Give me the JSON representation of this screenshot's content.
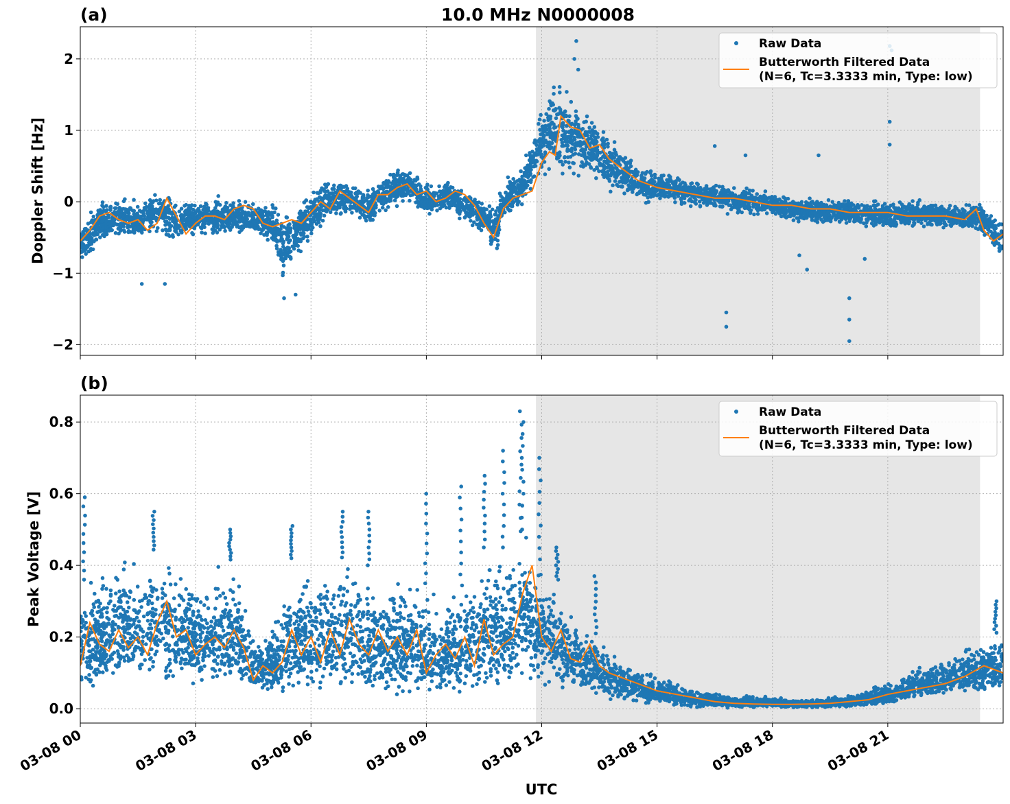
{
  "colors": {
    "raw": "#1f77b4",
    "filtered": "#ff7f0e",
    "shade": "#e6e6e6",
    "grid": "#b0b0b0"
  },
  "figure": {
    "suptitle": "10.0 MHz N0000008",
    "xlabel": "UTC"
  },
  "chart_data": [
    {
      "type": "scatter",
      "panel_label": "(a)",
      "ylabel": "Doppler Shift [Hz]",
      "xlim": [
        0,
        24
      ],
      "ylim": [
        -2.15,
        2.45
      ],
      "yticks": [
        -2,
        -1,
        0,
        1,
        2
      ],
      "ytick_labels": [
        "−2",
        "−1",
        "0",
        "1",
        "2"
      ],
      "xticks": [
        0,
        3,
        6,
        9,
        12,
        15,
        18,
        21
      ],
      "xtick_labels": [
        "03-08 00",
        "03-08 03",
        "03-08 06",
        "03-08 09",
        "03-08 12",
        "03-08 15",
        "03-08 18",
        "03-08 21"
      ],
      "grid": true,
      "legend_position": "top-right",
      "shaded_interval": [
        11.85,
        23.4
      ],
      "series": [
        {
          "name": "Raw Data",
          "style": "dots",
          "band": {
            "x": [
              0,
              0.5,
              1,
              1.5,
              2,
              2.5,
              3,
              3.5,
              4,
              4.5,
              5,
              5.3,
              5.7,
              6,
              6.5,
              7,
              7.5,
              8,
              8.5,
              9,
              9.5,
              10,
              10.5,
              10.8,
              11,
              11.5,
              11.85,
              12.3,
              12.8,
              13.3,
              14,
              14.5,
              15,
              16,
              17,
              18,
              19,
              20,
              21,
              22,
              23,
              23.4,
              24
            ],
            "lo": [
              -0.95,
              -0.6,
              -0.6,
              -0.6,
              -0.5,
              -0.6,
              -0.5,
              -0.55,
              -0.5,
              -0.5,
              -0.7,
              -1.2,
              -0.8,
              -0.6,
              -0.3,
              -0.2,
              -0.4,
              -0.15,
              0.0,
              -0.25,
              -0.15,
              -0.3,
              -0.5,
              -0.85,
              -0.3,
              -0.1,
              0.25,
              0.3,
              0.3,
              0.25,
              0.05,
              -0.05,
              -0.05,
              -0.1,
              -0.2,
              -0.25,
              -0.35,
              -0.35,
              -0.4,
              -0.4,
              -0.45,
              -0.45,
              -0.9
            ],
            "hi": [
              -0.3,
              0.05,
              0.1,
              0.05,
              0.2,
              0.05,
              0.05,
              0.1,
              0.05,
              0.05,
              0.05,
              -0.1,
              0.05,
              0.2,
              0.35,
              0.3,
              0.25,
              0.45,
              0.5,
              0.3,
              0.35,
              0.2,
              0.05,
              0.0,
              0.35,
              0.5,
              1.1,
              1.8,
              1.55,
              1.25,
              0.85,
              0.55,
              0.45,
              0.35,
              0.25,
              0.15,
              0.1,
              0.05,
              0.05,
              0.05,
              0.0,
              0.0,
              -0.2
            ]
          },
          "outliers": [
            [
              1.6,
              -1.15
            ],
            [
              2.2,
              -1.15
            ],
            [
              5.3,
              -1.35
            ],
            [
              5.6,
              -1.3
            ],
            [
              12.9,
              2.25
            ],
            [
              12.85,
              2.0
            ],
            [
              12.95,
              1.85
            ],
            [
              16.8,
              -1.55
            ],
            [
              16.8,
              -1.75
            ],
            [
              17.3,
              0.65
            ],
            [
              18.7,
              -0.75
            ],
            [
              18.9,
              -0.95
            ],
            [
              19.2,
              0.65
            ],
            [
              20.0,
              -1.35
            ],
            [
              20.0,
              -1.65
            ],
            [
              20.0,
              -1.95
            ],
            [
              21.05,
              1.12
            ],
            [
              21.05,
              0.8
            ],
            [
              21.05,
              2.18
            ],
            [
              21.1,
              2.12
            ],
            [
              16.5,
              0.78
            ],
            [
              20.4,
              -0.8
            ]
          ]
        },
        {
          "name": "Butterworth Filtered Data\n(N=6, Tc=3.3333 min, Type: low)",
          "style": "line",
          "x": [
            0,
            0.25,
            0.5,
            0.75,
            1,
            1.25,
            1.5,
            1.75,
            2,
            2.25,
            2.5,
            2.75,
            3,
            3.25,
            3.5,
            3.75,
            4,
            4.25,
            4.5,
            4.75,
            5,
            5.25,
            5.5,
            5.75,
            6,
            6.25,
            6.5,
            6.75,
            7,
            7.25,
            7.5,
            7.75,
            8,
            8.25,
            8.5,
            8.75,
            9,
            9.25,
            9.5,
            9.75,
            10,
            10.25,
            10.5,
            10.75,
            11,
            11.25,
            11.5,
            11.75,
            12,
            12.2,
            12.35,
            12.5,
            12.75,
            13,
            13.25,
            13.5,
            13.75,
            14,
            14.5,
            15,
            15.5,
            16,
            16.5,
            17,
            17.5,
            18,
            18.5,
            19,
            19.5,
            20,
            20.5,
            21,
            21.5,
            22,
            22.5,
            23,
            23.3,
            23.5,
            23.75,
            24
          ],
          "y": [
            -0.55,
            -0.4,
            -0.2,
            -0.15,
            -0.25,
            -0.3,
            -0.25,
            -0.4,
            -0.3,
            0.05,
            -0.2,
            -0.45,
            -0.3,
            -0.2,
            -0.2,
            -0.25,
            -0.1,
            -0.05,
            -0.1,
            -0.3,
            -0.35,
            -0.3,
            -0.25,
            -0.3,
            -0.15,
            0.0,
            -0.1,
            0.15,
            0.05,
            -0.05,
            -0.15,
            0.1,
            0.1,
            0.2,
            0.25,
            0.1,
            0.15,
            0.0,
            0.05,
            0.15,
            0.1,
            -0.05,
            -0.3,
            -0.5,
            -0.1,
            0.05,
            0.1,
            0.15,
            0.55,
            0.7,
            0.65,
            1.2,
            1.05,
            1.0,
            0.75,
            0.8,
            0.6,
            0.5,
            0.3,
            0.2,
            0.15,
            0.1,
            0.05,
            0.05,
            0.0,
            -0.05,
            -0.05,
            -0.1,
            -0.1,
            -0.15,
            -0.15,
            -0.15,
            -0.2,
            -0.2,
            -0.2,
            -0.25,
            -0.1,
            -0.4,
            -0.55,
            -0.45
          ]
        }
      ]
    },
    {
      "type": "scatter",
      "panel_label": "(b)",
      "ylabel": "Peak Voltage [V]",
      "xlabel": "UTC",
      "xlim": [
        0,
        24
      ],
      "ylim": [
        -0.04,
        0.875
      ],
      "yticks": [
        0.0,
        0.2,
        0.4,
        0.6,
        0.8
      ],
      "ytick_labels": [
        "0.0",
        "0.2",
        "0.4",
        "0.6",
        "0.8"
      ],
      "xticks": [
        0,
        3,
        6,
        9,
        12,
        15,
        18,
        21
      ],
      "xtick_labels": [
        "03-08 00",
        "03-08 03",
        "03-08 06",
        "03-08 09",
        "03-08 12",
        "03-08 15",
        "03-08 18",
        "03-08 21"
      ],
      "grid": true,
      "legend_position": "top-right",
      "shaded_interval": [
        11.85,
        23.4
      ],
      "series": [
        {
          "name": "Raw Data",
          "style": "dots",
          "band": {
            "x": [
              0,
              0.5,
              1,
              1.5,
              2,
              2.5,
              3,
              3.5,
              4,
              4.5,
              5,
              5.5,
              6,
              6.5,
              7,
              7.5,
              8,
              8.5,
              9,
              9.5,
              10,
              10.5,
              11,
              11.5,
              11.85,
              12,
              12.5,
              13,
              13.5,
              14,
              15,
              16,
              17,
              18,
              19,
              20,
              21,
              22,
              23,
              24
            ],
            "lo": [
              0.05,
              0.05,
              0.06,
              0.07,
              0.06,
              0.06,
              0.05,
              0.05,
              0.05,
              0.04,
              0.03,
              0.03,
              0.04,
              0.04,
              0.04,
              0.03,
              0.04,
              0.03,
              0.03,
              0.04,
              0.04,
              0.05,
              0.05,
              0.07,
              0.06,
              0.05,
              0.05,
              0.04,
              0.03,
              0.02,
              0.01,
              0.003,
              0.002,
              0.002,
              0.002,
              0.003,
              0.01,
              0.03,
              0.04,
              0.04
            ],
            "hi": [
              0.35,
              0.4,
              0.45,
              0.42,
              0.45,
              0.42,
              0.38,
              0.4,
              0.42,
              0.22,
              0.25,
              0.42,
              0.4,
              0.38,
              0.45,
              0.4,
              0.35,
              0.4,
              0.35,
              0.32,
              0.35,
              0.45,
              0.45,
              0.5,
              0.45,
              0.4,
              0.35,
              0.25,
              0.2,
              0.15,
              0.1,
              0.06,
              0.04,
              0.035,
              0.03,
              0.04,
              0.08,
              0.13,
              0.18,
              0.22
            ]
          },
          "spikes": [
            [
              0.1,
              0.59
            ],
            [
              1.9,
              0.55
            ],
            [
              3.9,
              0.5
            ],
            [
              5.5,
              0.51
            ],
            [
              6.8,
              0.55
            ],
            [
              7.5,
              0.55
            ],
            [
              9.0,
              0.6
            ],
            [
              9.9,
              0.62
            ],
            [
              10.5,
              0.65
            ],
            [
              11.0,
              0.72
            ],
            [
              11.45,
              0.83
            ],
            [
              11.5,
              0.8
            ],
            [
              11.95,
              0.7
            ],
            [
              12.4,
              0.45
            ],
            [
              13.4,
              0.37
            ],
            [
              23.8,
              0.3
            ]
          ]
        },
        {
          "name": "Butterworth Filtered Data\n(N=6, Tc=3.3333 min, Type: low)",
          "style": "line",
          "x": [
            0,
            0.25,
            0.5,
            0.75,
            1,
            1.25,
            1.5,
            1.75,
            2,
            2.25,
            2.5,
            2.75,
            3,
            3.25,
            3.5,
            3.75,
            4,
            4.25,
            4.5,
            4.75,
            5,
            5.25,
            5.5,
            5.75,
            6,
            6.25,
            6.5,
            6.75,
            7,
            7.25,
            7.5,
            7.75,
            8,
            8.25,
            8.5,
            8.75,
            9,
            9.25,
            9.5,
            9.75,
            10,
            10.25,
            10.5,
            10.75,
            11,
            11.25,
            11.5,
            11.75,
            12,
            12.25,
            12.5,
            12.75,
            13,
            13.25,
            13.5,
            13.75,
            14,
            14.5,
            15,
            15.5,
            16,
            16.5,
            17,
            17.5,
            18,
            18.5,
            19,
            19.5,
            20,
            20.5,
            21,
            21.5,
            22,
            22.5,
            23,
            23.5,
            24
          ],
          "y": [
            0.12,
            0.24,
            0.18,
            0.16,
            0.22,
            0.17,
            0.2,
            0.15,
            0.24,
            0.3,
            0.2,
            0.22,
            0.15,
            0.18,
            0.2,
            0.17,
            0.22,
            0.17,
            0.08,
            0.12,
            0.1,
            0.13,
            0.22,
            0.15,
            0.2,
            0.13,
            0.22,
            0.15,
            0.25,
            0.18,
            0.15,
            0.22,
            0.16,
            0.2,
            0.15,
            0.22,
            0.1,
            0.15,
            0.18,
            0.14,
            0.2,
            0.12,
            0.25,
            0.15,
            0.18,
            0.2,
            0.32,
            0.4,
            0.2,
            0.16,
            0.22,
            0.14,
            0.13,
            0.18,
            0.12,
            0.1,
            0.09,
            0.07,
            0.05,
            0.04,
            0.03,
            0.02,
            0.015,
            0.013,
            0.012,
            0.012,
            0.013,
            0.015,
            0.02,
            0.025,
            0.04,
            0.05,
            0.06,
            0.07,
            0.09,
            0.12,
            0.1
          ]
        }
      ]
    }
  ]
}
